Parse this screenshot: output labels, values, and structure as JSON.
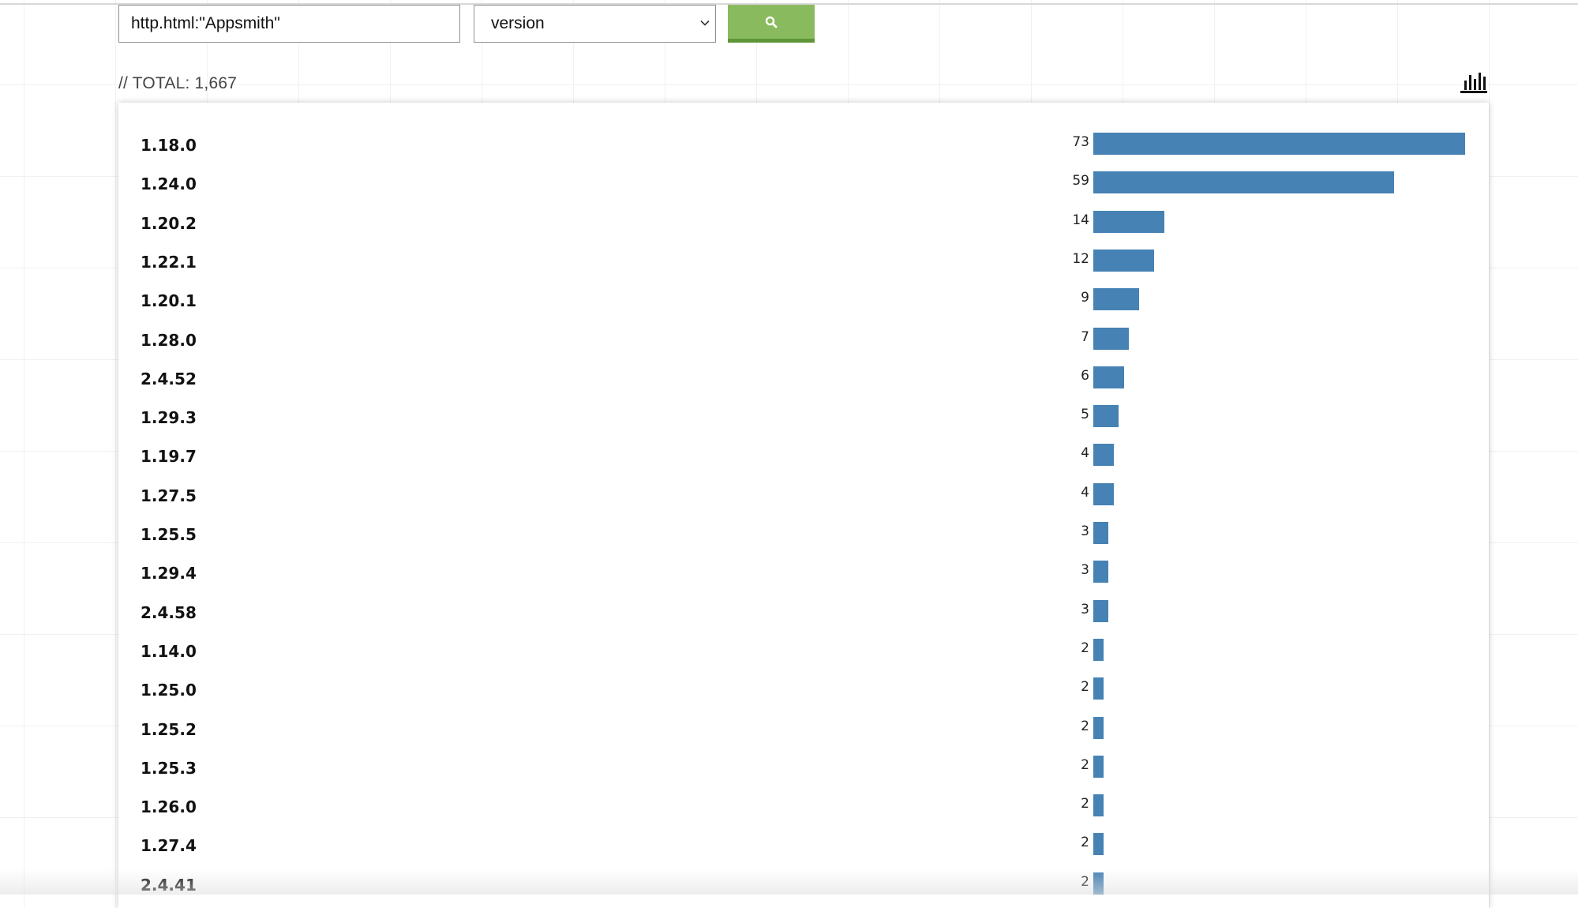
{
  "search": {
    "query": "http.html:\"Appsmith\"",
    "placeholder": ""
  },
  "facet_select": {
    "selected": "version"
  },
  "search_button": {
    "icon": "magnifier-icon",
    "color": "#8aba5e"
  },
  "total_label": "// TOTAL: 1,667",
  "chart_toggle": {
    "icon": "bar-chart-icon"
  },
  "chart_data": {
    "type": "bar",
    "orientation": "horizontal",
    "bar_color": "#4682b4",
    "categories": [
      "1.18.0",
      "1.24.0",
      "1.20.2",
      "1.22.1",
      "1.20.1",
      "1.28.0",
      "2.4.52",
      "1.29.3",
      "1.19.7",
      "1.27.5",
      "1.25.5",
      "1.29.4",
      "2.4.58",
      "1.14.0",
      "1.25.0",
      "1.25.2",
      "1.25.3",
      "1.26.0",
      "1.27.4",
      "2.4.41"
    ],
    "values": [
      73,
      59,
      14,
      12,
      9,
      7,
      6,
      5,
      4,
      4,
      3,
      3,
      3,
      2,
      2,
      2,
      2,
      2,
      2,
      2
    ],
    "xlim": [
      0,
      73
    ],
    "grid": false,
    "legend": "none"
  }
}
